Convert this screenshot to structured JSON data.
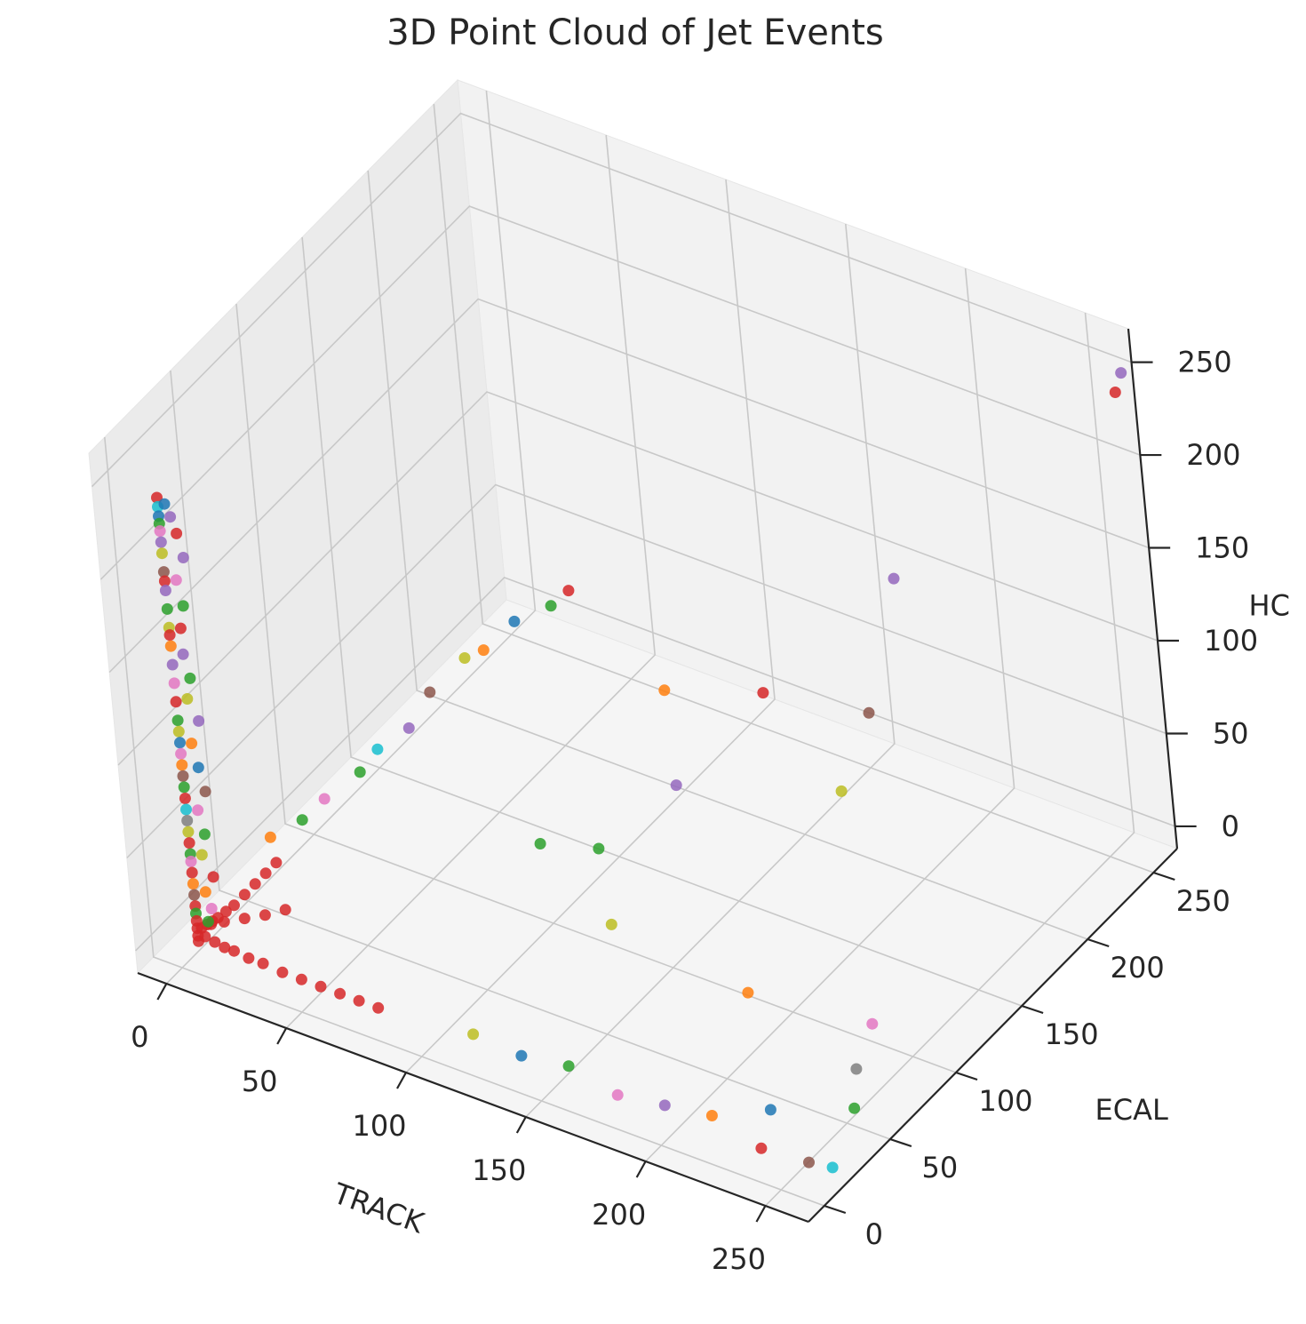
{
  "chart_data": {
    "type": "scatter3d",
    "title": "3D Point Cloud of Jet Events",
    "xlabel": "TRACK",
    "ylabel": "ECAL",
    "zlabel": "HC",
    "xlim": [
      -12,
      268
    ],
    "ylim": [
      -12,
      268
    ],
    "zlim": [
      -12,
      268
    ],
    "xticks": [
      "0",
      "50",
      "100",
      "150",
      "200",
      "250"
    ],
    "yticks": [
      "0",
      "50",
      "100",
      "150",
      "200",
      "250"
    ],
    "zticks": [
      "0",
      "50",
      "100",
      "150",
      "200",
      "250"
    ],
    "grid": true,
    "legend": "none",
    "colors": [
      "#1f77b4",
      "#ff7f0e",
      "#2ca02c",
      "#d62728",
      "#9467bd",
      "#8c564b",
      "#e377c2",
      "#7f7f7f",
      "#bcbd22",
      "#17becf"
    ],
    "points": [
      [
        5,
        5,
        240,
        3
      ],
      [
        5,
        5,
        235,
        9
      ],
      [
        5,
        5,
        230,
        0
      ],
      [
        5,
        5,
        226,
        2
      ],
      [
        5,
        5,
        222,
        6
      ],
      [
        5,
        5,
        216,
        4
      ],
      [
        5,
        5,
        210,
        8
      ],
      [
        5,
        5,
        200,
        5
      ],
      [
        5,
        5,
        195,
        3
      ],
      [
        5,
        5,
        190,
        4
      ],
      [
        5,
        5,
        180,
        2
      ],
      [
        5,
        5,
        170,
        8
      ],
      [
        5,
        5,
        166,
        3
      ],
      [
        5,
        5,
        160,
        1
      ],
      [
        5,
        5,
        150,
        4
      ],
      [
        5,
        5,
        140,
        6
      ],
      [
        5,
        5,
        130,
        3
      ],
      [
        5,
        5,
        120,
        2
      ],
      [
        5,
        5,
        114,
        8
      ],
      [
        5,
        5,
        108,
        0
      ],
      [
        5,
        5,
        102,
        6
      ],
      [
        5,
        5,
        96,
        1
      ],
      [
        5,
        5,
        90,
        5
      ],
      [
        5,
        5,
        84,
        2
      ],
      [
        5,
        5,
        78,
        3
      ],
      [
        5,
        5,
        72,
        9
      ],
      [
        5,
        5,
        66,
        7
      ],
      [
        5,
        5,
        60,
        8
      ],
      [
        5,
        5,
        54,
        3
      ],
      [
        5,
        5,
        48,
        2
      ],
      [
        5,
        5,
        44,
        6
      ],
      [
        5,
        5,
        38,
        3
      ],
      [
        5,
        5,
        32,
        1
      ],
      [
        5,
        5,
        26,
        5
      ],
      [
        5,
        5,
        20,
        3
      ],
      [
        5,
        5,
        16,
        2
      ],
      [
        5,
        5,
        12,
        3
      ],
      [
        5,
        5,
        8,
        3
      ],
      [
        5,
        5,
        4,
        3
      ],
      [
        5,
        5,
        1,
        3
      ],
      [
        8,
        5,
        238,
        0
      ],
      [
        10,
        5,
        232,
        4
      ],
      [
        12,
        5,
        224,
        3
      ],
      [
        14,
        5,
        212,
        4
      ],
      [
        10,
        5,
        198,
        6
      ],
      [
        12,
        5,
        185,
        2
      ],
      [
        10,
        5,
        172,
        3
      ],
      [
        10,
        5,
        158,
        4
      ],
      [
        12,
        5,
        146,
        2
      ],
      [
        10,
        5,
        134,
        8
      ],
      [
        14,
        5,
        124,
        4
      ],
      [
        10,
        5,
        110,
        1
      ],
      [
        12,
        5,
        98,
        0
      ],
      [
        14,
        5,
        86,
        5
      ],
      [
        10,
        5,
        74,
        6
      ],
      [
        12,
        5,
        62,
        2
      ],
      [
        10,
        5,
        50,
        8
      ],
      [
        14,
        5,
        40,
        3
      ],
      [
        10,
        5,
        30,
        1
      ],
      [
        12,
        5,
        22,
        6
      ],
      [
        10,
        5,
        14,
        2
      ],
      [
        5,
        8,
        6,
        3
      ],
      [
        5,
        12,
        5,
        3
      ],
      [
        5,
        16,
        4,
        3
      ],
      [
        5,
        20,
        3,
        3
      ],
      [
        5,
        26,
        2,
        3
      ],
      [
        5,
        32,
        1,
        3
      ],
      [
        5,
        40,
        1,
        3
      ],
      [
        5,
        48,
        1,
        3
      ],
      [
        5,
        56,
        1,
        3
      ],
      [
        5,
        64,
        1,
        3
      ],
      [
        8,
        10,
        8,
        3
      ],
      [
        10,
        16,
        6,
        3
      ],
      [
        14,
        24,
        4,
        3
      ],
      [
        18,
        32,
        2,
        3
      ],
      [
        22,
        40,
        1,
        3
      ],
      [
        8,
        5,
        5,
        3
      ],
      [
        12,
        5,
        4,
        3
      ],
      [
        16,
        5,
        3,
        3
      ],
      [
        20,
        5,
        3,
        3
      ],
      [
        26,
        5,
        2,
        3
      ],
      [
        32,
        5,
        2,
        3
      ],
      [
        40,
        5,
        1,
        3
      ],
      [
        48,
        5,
        1,
        3
      ],
      [
        56,
        5,
        1,
        3
      ],
      [
        64,
        5,
        1,
        3
      ],
      [
        72,
        5,
        1,
        3
      ],
      [
        80,
        5,
        1,
        3
      ],
      [
        6,
        60,
        18,
        1
      ],
      [
        8,
        80,
        14,
        2
      ],
      [
        6,
        100,
        10,
        6
      ],
      [
        10,
        120,
        12,
        2
      ],
      [
        6,
        140,
        8,
        9
      ],
      [
        8,
        160,
        6,
        4
      ],
      [
        6,
        180,
        10,
        5
      ],
      [
        10,
        200,
        16,
        8
      ],
      [
        6,
        220,
        4,
        1
      ],
      [
        8,
        240,
        6,
        0
      ],
      [
        12,
        260,
        2,
        2
      ],
      [
        14,
        270,
        4,
        3
      ],
      [
        120,
        5,
        6,
        8
      ],
      [
        140,
        5,
        4,
        0
      ],
      [
        160,
        5,
        8,
        2
      ],
      [
        180,
        5,
        2,
        6
      ],
      [
        200,
        5,
        6,
        4
      ],
      [
        220,
        5,
        10,
        1
      ],
      [
        240,
        5,
        2,
        3
      ],
      [
        260,
        5,
        4,
        5
      ],
      [
        270,
        5,
        6,
        9
      ],
      [
        268,
        260,
        250,
        4
      ],
      [
        266,
        258,
        240,
        3
      ],
      [
        230,
        150,
        200,
        4
      ],
      [
        200,
        100,
        160,
        3
      ],
      [
        220,
        140,
        130,
        5
      ],
      [
        120,
        160,
        80,
        1
      ],
      [
        140,
        130,
        60,
        4
      ],
      [
        180,
        180,
        40,
        8
      ],
      [
        160,
        40,
        100,
        2
      ],
      [
        200,
        70,
        20,
        1
      ],
      [
        230,
        30,
        0,
        0
      ],
      [
        250,
        60,
        10,
        7
      ],
      [
        260,
        40,
        8,
        2
      ],
      [
        240,
        90,
        8,
        6
      ],
      [
        150,
        60,
        40,
        8
      ],
      [
        110,
        80,
        50,
        2
      ]
    ]
  }
}
